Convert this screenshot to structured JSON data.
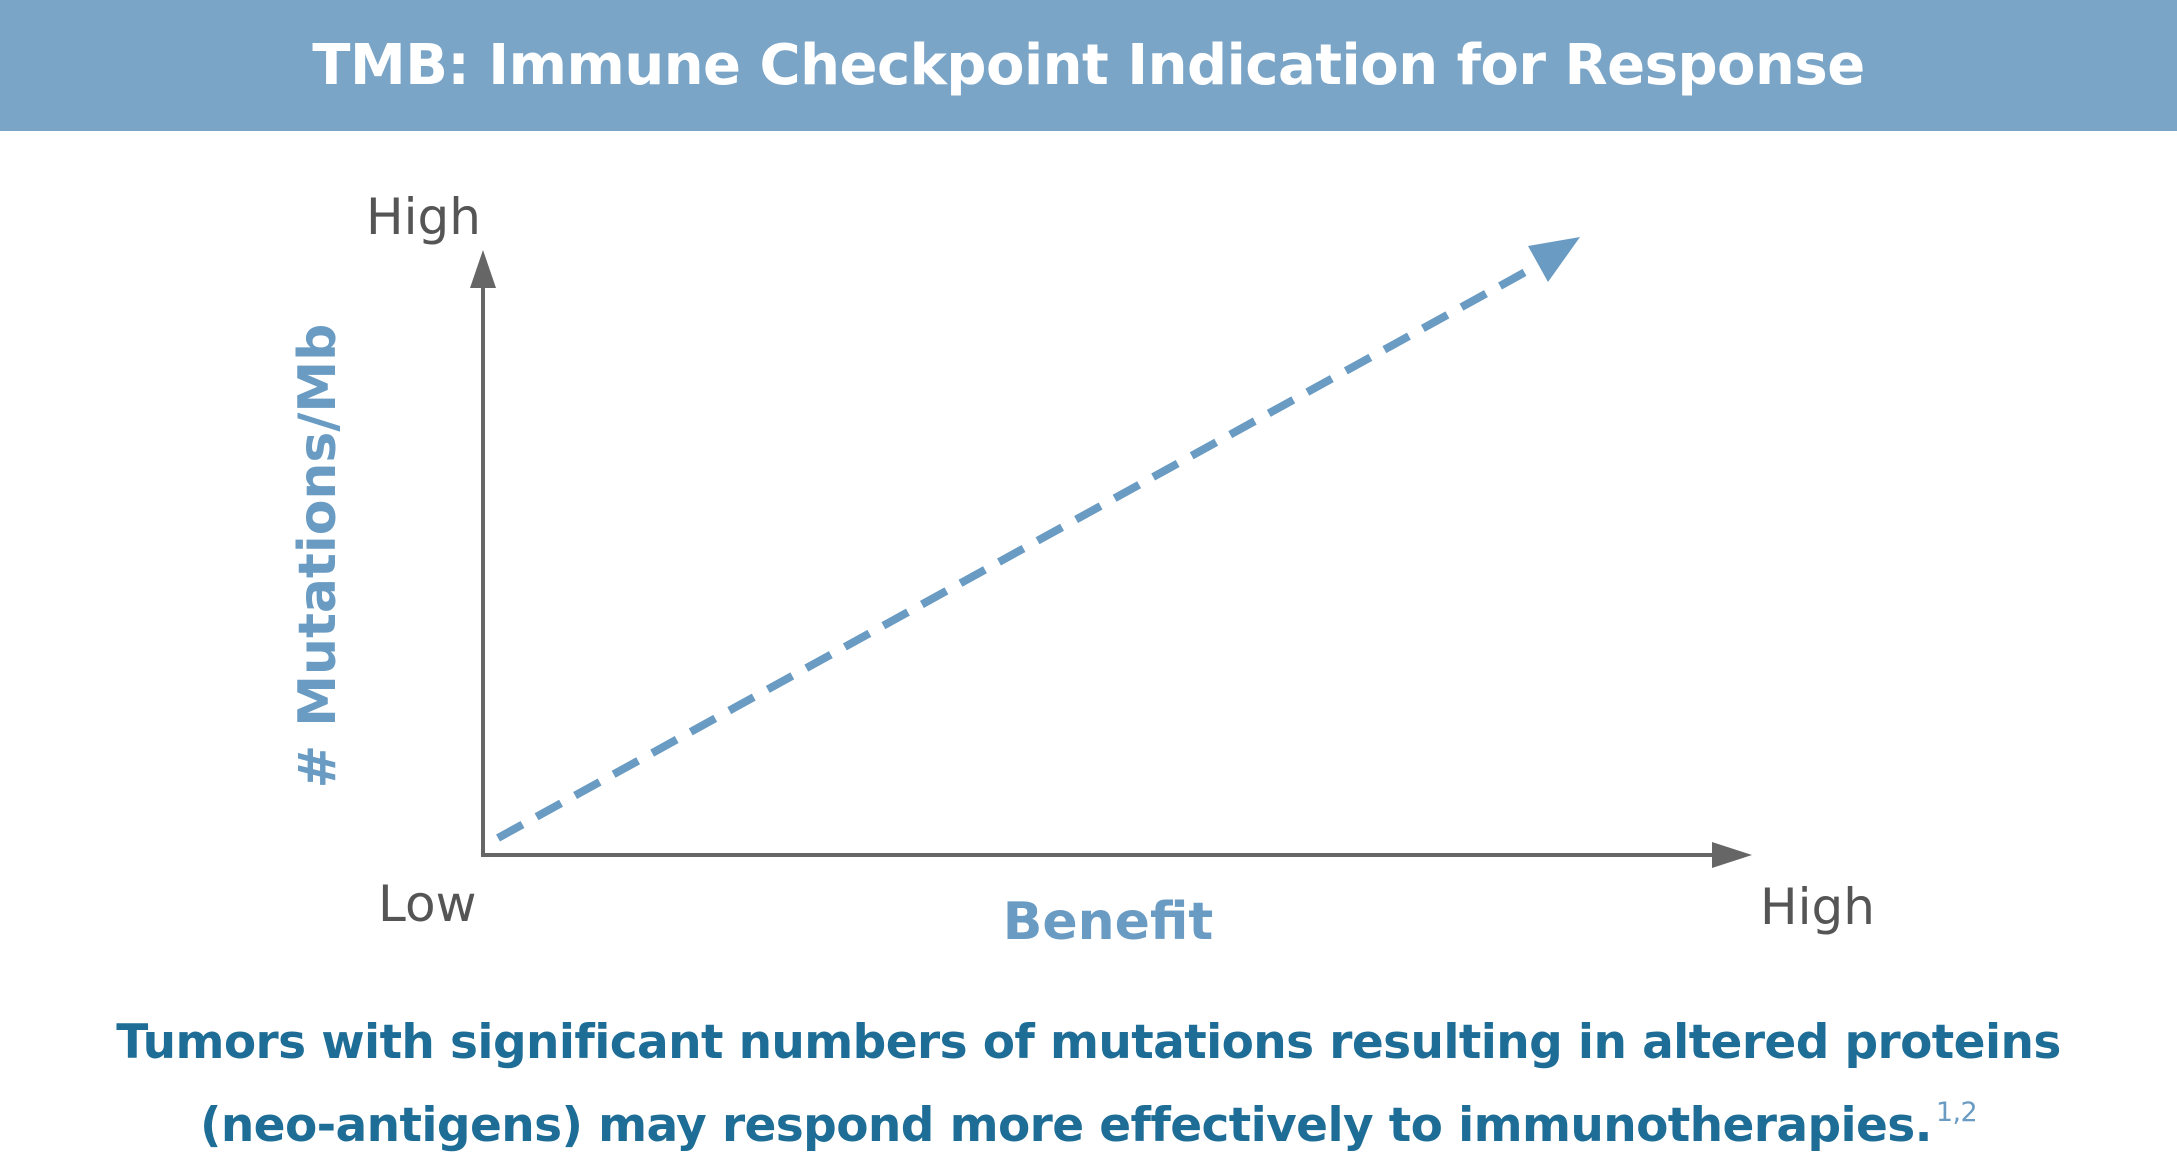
{
  "header": {
    "title": "TMB: Immune Checkpoint Indication for Response"
  },
  "diagram": {
    "y_axis_high_label": "High",
    "y_axis_title": "# Mutations/Mb",
    "origin_label": "Low",
    "x_axis_title": "Benefit",
    "x_axis_high_label": "High",
    "trend": {
      "direction": "increasing",
      "style": "dashed",
      "color": "#6a9bc3"
    },
    "axis_color": "#666666"
  },
  "caption": {
    "line1": "Tumors with significant numbers of mutations resulting in altered proteins",
    "line2": "(neo-antigens) may respond more effectively to immunotherapies.",
    "references": "1,2"
  }
}
